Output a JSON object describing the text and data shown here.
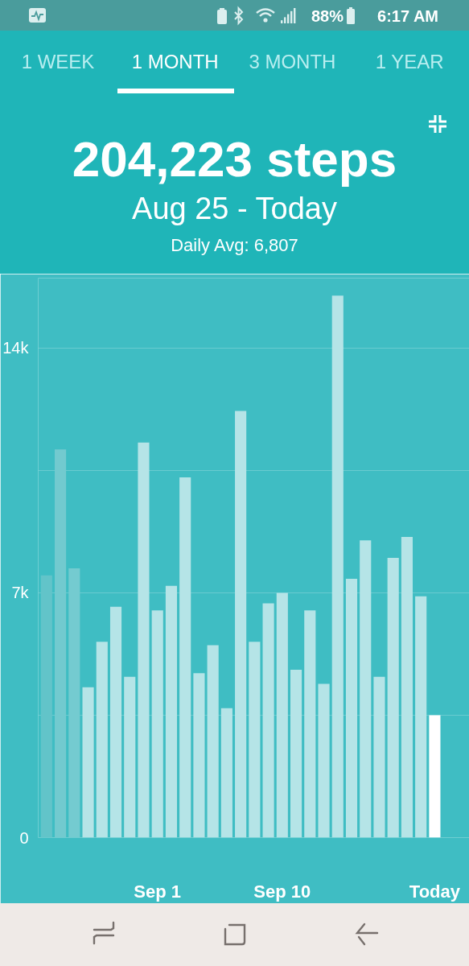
{
  "chart_data": {
    "type": "bar",
    "title": "204,223 steps",
    "subtitle": "Aug 25 - Today",
    "annotations": [
      "Daily Avg: 6,807",
      "1 WEEK",
      "1 MONTH",
      "3 MONTH",
      "1 YEAR",
      "88%",
      "6:17 AM"
    ],
    "categories": [
      null,
      null,
      null,
      null,
      null,
      null,
      null,
      null,
      "Sep 1",
      null,
      null,
      null,
      null,
      null,
      null,
      null,
      null,
      "Sep 10",
      null,
      null,
      null,
      null,
      null,
      null,
      null,
      null,
      null,
      null,
      "Today"
    ],
    "values": [
      7500,
      11100,
      7700,
      4300,
      5600,
      6600,
      4600,
      11300,
      6500,
      7200,
      10300,
      4700,
      5500,
      3700,
      12200,
      5600,
      6700,
      7000,
      4800,
      6500,
      4400,
      15500,
      7400,
      8500,
      4600,
      8000,
      8600,
      6900,
      3500
    ],
    "colors": [
      "#62c4c9",
      "#72cacf",
      "#74cbd0",
      "#b5e4e7",
      "#b5e4e7",
      "#b5e4e7",
      "#b5e4e7",
      "#b5e4e7",
      "#b5e4e7",
      "#b5e4e7",
      "#b5e4e7",
      "#b5e4e7",
      "#b5e4e7",
      "#b5e4e7",
      "#b5e4e7",
      "#b5e4e7",
      "#b5e4e7",
      "#b5e4e7",
      "#b5e4e7",
      "#b5e4e7",
      "#b5e4e7",
      "#b5e4e7",
      "#b5e4e7",
      "#b5e4e7",
      "#b5e4e7",
      "#b5e4e7",
      "#b5e4e7",
      "#b5e4e7",
      "#ffffff"
    ],
    "ylim": [
      0,
      16000
    ],
    "yticks": [
      0,
      {
        "value": 3500,
        "label": null
      },
      {
        "value": 7000,
        "label": "7k"
      },
      {
        "value": 10500,
        "label": null
      },
      {
        "value": 14000,
        "label": "14k"
      }
    ],
    "grid": "y"
  }
}
